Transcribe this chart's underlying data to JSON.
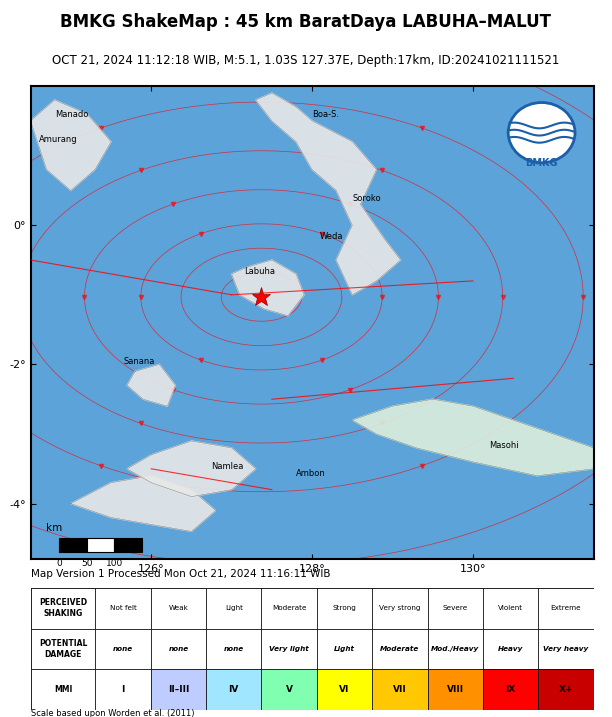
{
  "title": "BMKG ShakeMap : 45 km BaratDaya LABUHA–MALUT",
  "subtitle": "OCT 21, 2024 11:12:18 WIB, M:5.1, 1.03S 127.37E, Depth:17km, ID:20241021111521",
  "map_version_text": "Map Version 1 Processed Mon Oct 21, 2024 11:16:11 WIB",
  "scale_text": "Scale based upon Worden et al. (2011)",
  "mmi_table": {
    "row1_label": "PERCEIVED\nSHAKING",
    "row2_label": "POTENTIAL\nDAMAGE",
    "row3_label": "MMI",
    "shaking": [
      "Not felt",
      "Weak",
      "Light",
      "Moderate",
      "Strong",
      "Very strong",
      "Severe",
      "Violent",
      "Extreme"
    ],
    "damage": [
      "none",
      "none",
      "none",
      "Very light",
      "Light",
      "Moderate",
      "Mod./Heavy",
      "Heavy",
      "Very heavy"
    ],
    "mmi": [
      "I",
      "II–III",
      "IV",
      "V",
      "VI",
      "VII",
      "VIII",
      "IX",
      "X+"
    ],
    "mmi_colors": [
      "#ffffff",
      "#bfccff",
      "#a0e6ff",
      "#80ffb0",
      "#ffff00",
      "#ffc800",
      "#ff9100",
      "#ff0000",
      "#c80000"
    ],
    "damage_italic": [
      true,
      true,
      true,
      true,
      true,
      true,
      true,
      true,
      true
    ]
  },
  "map_bg_color": "#5ba3d9",
  "title_fontsize": 12,
  "subtitle_fontsize": 8.5
}
